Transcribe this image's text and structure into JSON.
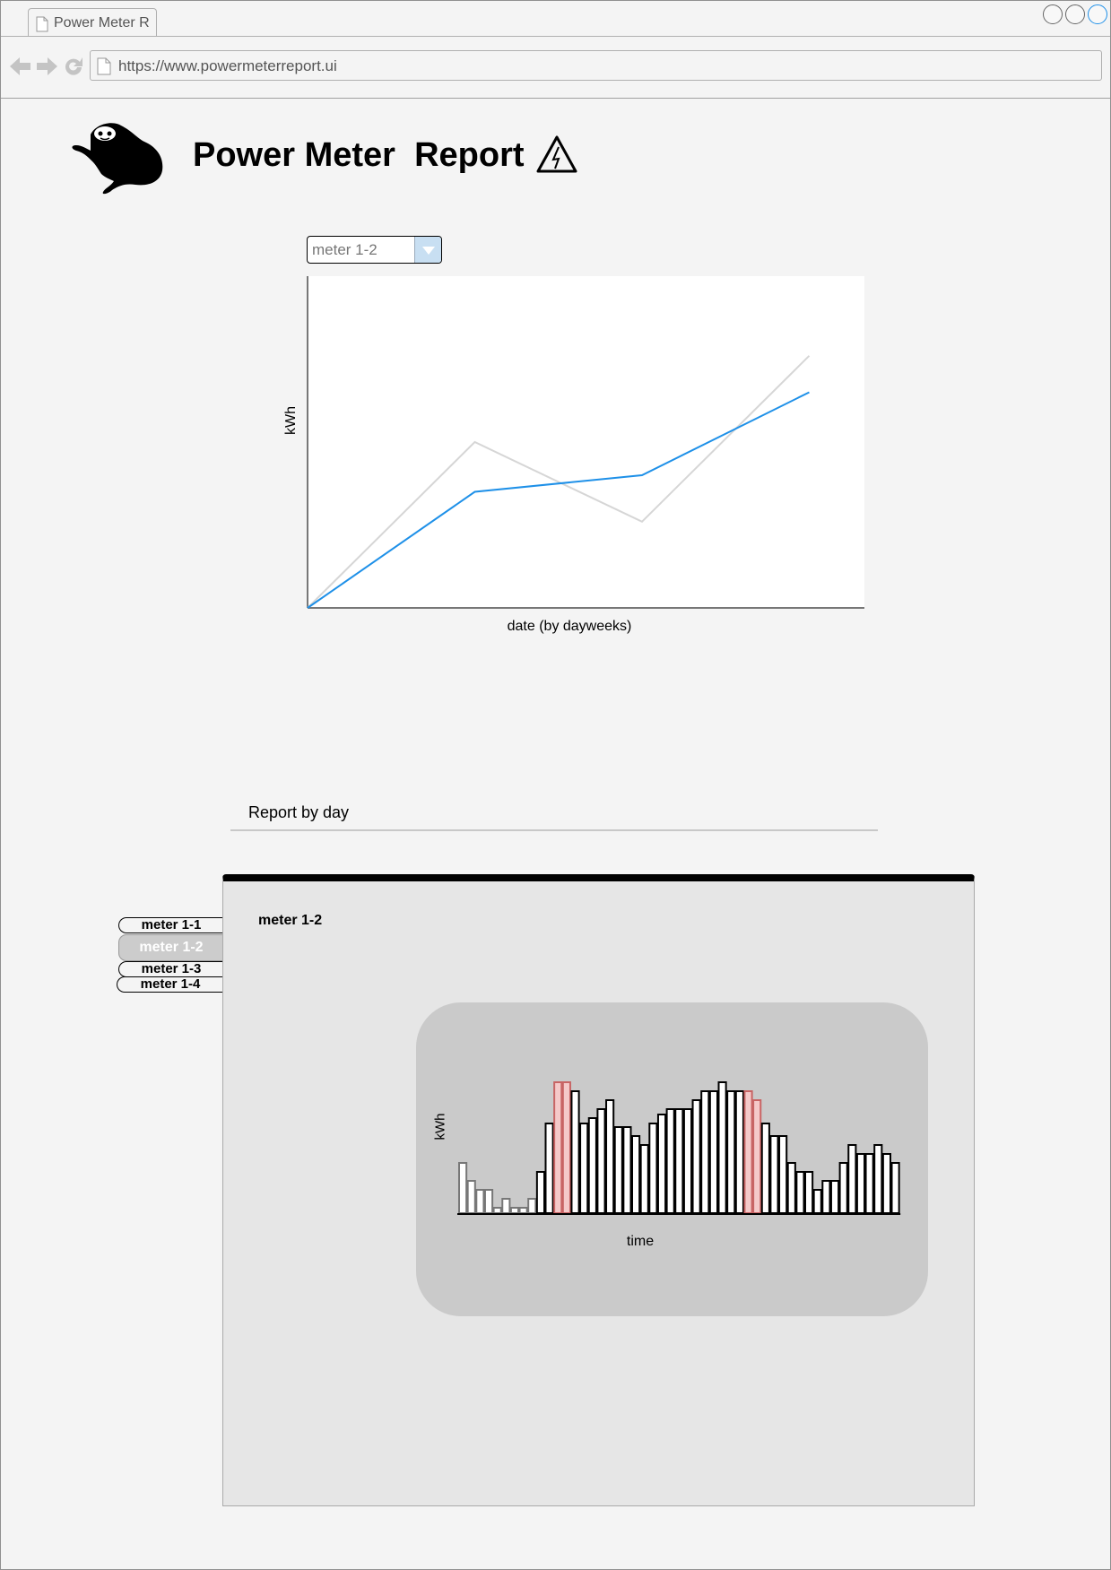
{
  "browser": {
    "tab_title": "Power Meter R",
    "url": "https://www.powermeterreport.ui"
  },
  "header": {
    "title": "Power Meter  Report",
    "logo_icon": "sloth-logo-icon",
    "warning_icon": "high-voltage-warning-icon"
  },
  "meter_select": {
    "selected": "meter 1-2"
  },
  "chart_data": [
    {
      "type": "line",
      "title": "",
      "xlabel": "date (by dayweeks)",
      "ylabel": "kWh",
      "x": [
        0,
        1,
        2,
        3
      ],
      "xlim": [
        0,
        3.33
      ],
      "ylim": [
        0,
        100
      ],
      "grid": false,
      "series": [
        {
          "values": [
            0,
            35,
            40,
            65
          ],
          "color": "#1e90e8"
        },
        {
          "values": [
            0,
            50,
            26,
            76
          ],
          "color": "#d6d6d6"
        }
      ]
    },
    {
      "type": "bar",
      "title": "",
      "xlabel": "time",
      "ylabel": "kWh",
      "ylim": [
        0,
        150
      ],
      "values": [
        56,
        36,
        26,
        26,
        6,
        16,
        6,
        6,
        16,
        46,
        100,
        146,
        146,
        136,
        100,
        106,
        116,
        126,
        96,
        96,
        86,
        76,
        100,
        110,
        116,
        116,
        116,
        126,
        136,
        136,
        146,
        136,
        136,
        136,
        126,
        100,
        86,
        86,
        56,
        46,
        46,
        26,
        36,
        36,
        56,
        76,
        66,
        66,
        76,
        66,
        56
      ],
      "dimmed_indices": [
        0,
        1,
        2,
        3,
        4,
        5,
        6,
        7,
        8
      ],
      "highlighted_indices": [
        11,
        12,
        33,
        34
      ],
      "colors": {
        "normal": "#ffffff",
        "highlight": "#f5c9c9",
        "highlight_stroke": "#c86464",
        "dimmed_stroke": "#777777"
      }
    }
  ],
  "report": {
    "section_title": "Report by day",
    "tabs": [
      {
        "label": "meter 1-1",
        "active": false
      },
      {
        "label": "meter 1-2",
        "active": true
      },
      {
        "label": "meter 1-3",
        "active": false
      },
      {
        "label": "meter 1-4",
        "active": false
      }
    ],
    "panel_label": "meter 1-2"
  }
}
